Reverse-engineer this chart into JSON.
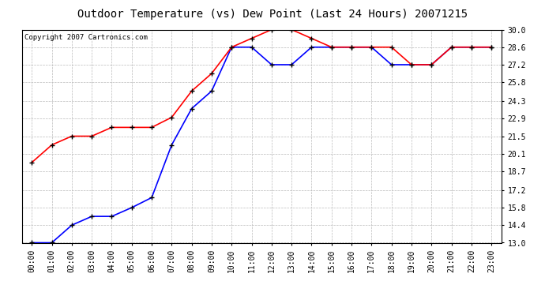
{
  "title": "Outdoor Temperature (vs) Dew Point (Last 24 Hours) 20071215",
  "copyright_text": "Copyright 2007 Cartronics.com",
  "x_labels": [
    "00:00",
    "01:00",
    "02:00",
    "03:00",
    "04:00",
    "05:00",
    "06:00",
    "07:00",
    "08:00",
    "09:00",
    "10:00",
    "11:00",
    "12:00",
    "13:00",
    "14:00",
    "15:00",
    "16:00",
    "17:00",
    "18:00",
    "19:00",
    "20:00",
    "21:00",
    "22:00",
    "23:00"
  ],
  "temp_data": [
    13.0,
    13.0,
    14.4,
    15.1,
    15.1,
    15.8,
    16.6,
    20.8,
    23.7,
    25.1,
    28.6,
    28.6,
    27.2,
    27.2,
    28.6,
    28.6,
    28.6,
    28.6,
    27.2,
    27.2,
    27.2,
    28.6,
    28.6,
    28.6
  ],
  "dew_data": [
    19.4,
    20.8,
    21.5,
    21.5,
    22.2,
    22.2,
    22.2,
    23.0,
    25.1,
    26.5,
    28.6,
    29.3,
    30.0,
    30.0,
    29.3,
    28.6,
    28.6,
    28.6,
    28.6,
    27.2,
    27.2,
    28.6,
    28.6,
    28.6
  ],
  "temp_color": "#0000FF",
  "dew_color": "#FF0000",
  "background_color": "#FFFFFF",
  "plot_bg_color": "#FFFFFF",
  "grid_color": "#BBBBBB",
  "ylim_min": 13.0,
  "ylim_max": 30.0,
  "yticks": [
    13.0,
    14.4,
    15.8,
    17.2,
    18.7,
    20.1,
    21.5,
    22.9,
    24.3,
    25.8,
    27.2,
    28.6,
    30.0
  ],
  "title_fontsize": 10,
  "tick_fontsize": 7,
  "copyright_fontsize": 6.5,
  "marker": "+",
  "marker_size": 5,
  "marker_edge_width": 1.0,
  "line_width": 1.2
}
